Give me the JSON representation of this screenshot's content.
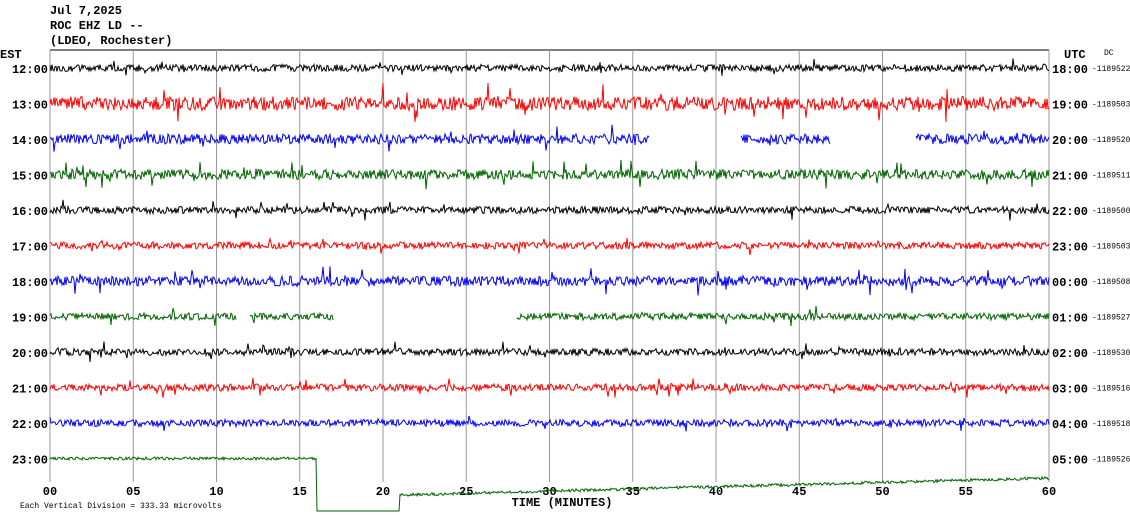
{
  "chart_data": {
    "type": "helicorder",
    "title": "Jul 7,2025",
    "station": "ROC EHZ LD --",
    "network": "(LDEO, Rochester)",
    "left_zone": "EST",
    "right_zone": "UTC",
    "dc_label": "DC",
    "x_label": "TIME (MINUTES)",
    "footnote": "Each Vertical Division =  333.33 microvolts",
    "xlim": [
      0,
      60
    ],
    "xticks": [
      {
        "value": 0,
        "label": "00"
      },
      {
        "value": 5,
        "label": "05"
      },
      10,
      15,
      20,
      25,
      30,
      35,
      40,
      45,
      50,
      55,
      60
    ],
    "rows": [
      {
        "est": "12:00",
        "utc": "18:00",
        "dc": -1189522,
        "color": "#000000"
      },
      {
        "est": "13:00",
        "utc": "19:00",
        "dc": -1189503,
        "color": "#ff0000"
      },
      {
        "est": "14:00",
        "utc": "20:00",
        "dc": -1189520,
        "color": "#0000ff"
      },
      {
        "est": "15:00",
        "utc": "21:00",
        "dc": -1189511,
        "color": "#006400"
      },
      {
        "est": "16:00",
        "utc": "22:00",
        "dc": -1189500,
        "color": "#000000"
      },
      {
        "est": "17:00",
        "utc": "23:00",
        "dc": -1189503,
        "color": "#ff0000"
      },
      {
        "est": "18:00",
        "utc": "00:00",
        "dc": -1189508,
        "color": "#0000ff"
      },
      {
        "est": "19:00",
        "utc": "01:00",
        "dc": -1189527,
        "color": "#006400"
      },
      {
        "est": "20:00",
        "utc": "02:00",
        "dc": -1189530,
        "color": "#000000"
      },
      {
        "est": "21:00",
        "utc": "03:00",
        "dc": -1189516,
        "color": "#ff0000"
      },
      {
        "est": "22:00",
        "utc": "04:00",
        "dc": -1189518,
        "color": "#0000ff"
      },
      {
        "est": "23:00",
        "utc": "05:00",
        "dc": -1189526,
        "color": "#006400"
      }
    ]
  }
}
